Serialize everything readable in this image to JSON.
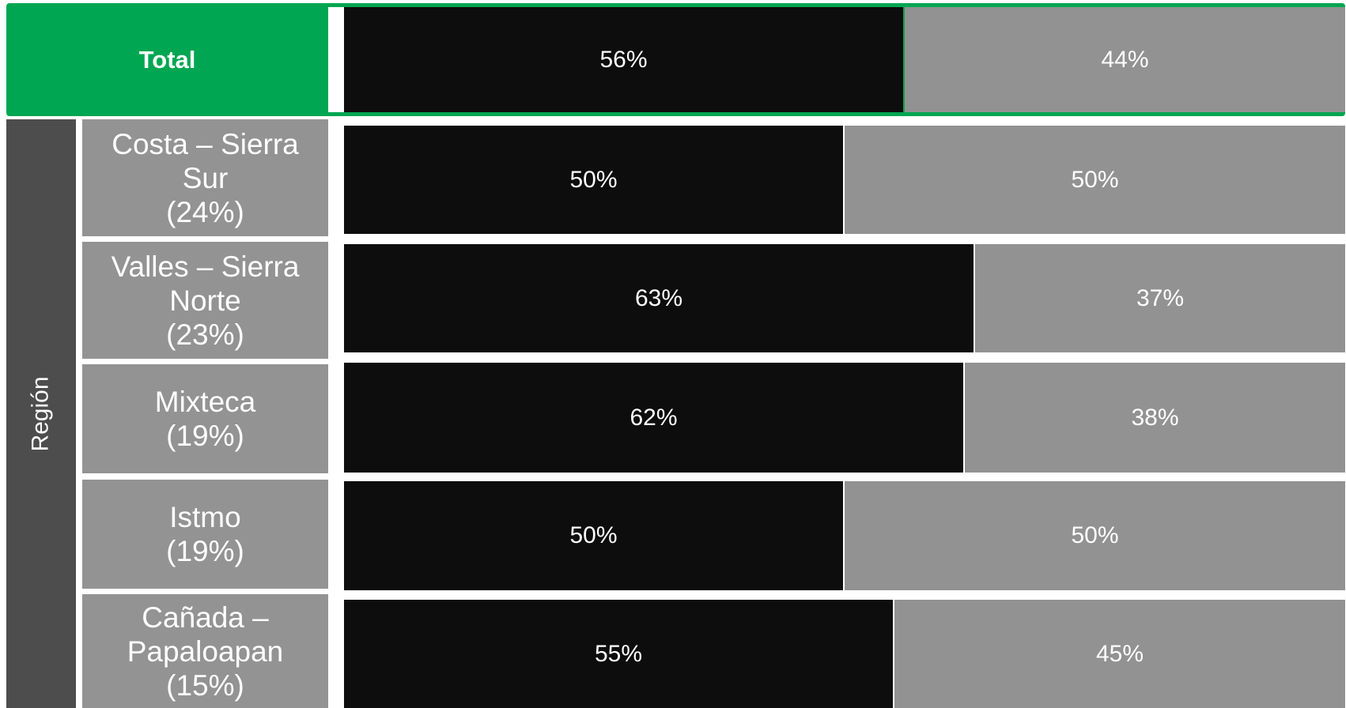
{
  "colors": {
    "total_accent": "#00a651",
    "group_band": "#4d4d4d",
    "label_box": "#939393",
    "series_primary": "#0d0d0d",
    "series_secondary": "#929292"
  },
  "group_label": "Región",
  "chart_data": {
    "type": "bar",
    "orientation": "horizontal",
    "stacked": "100%",
    "categories": [
      "Total",
      "Costa – Sierra\nSur\n(24%)",
      "Valles – Sierra\nNorte\n(23%)",
      "Mixteca\n(19%)",
      "Istmo\n(19%)",
      "Cañada –\nPapaloapan\n(15%)"
    ],
    "series": [
      {
        "values": [
          56,
          50,
          63,
          62,
          50,
          55
        ],
        "labels": [
          "56%",
          "50%",
          "63%",
          "62%",
          "50%",
          "55%"
        ]
      },
      {
        "values": [
          44,
          50,
          37,
          38,
          50,
          45
        ],
        "labels": [
          "44%",
          "50%",
          "37%",
          "38%",
          "50%",
          "45%"
        ]
      }
    ],
    "xlim": [
      0,
      100
    ],
    "grid": false,
    "legend": "none"
  }
}
